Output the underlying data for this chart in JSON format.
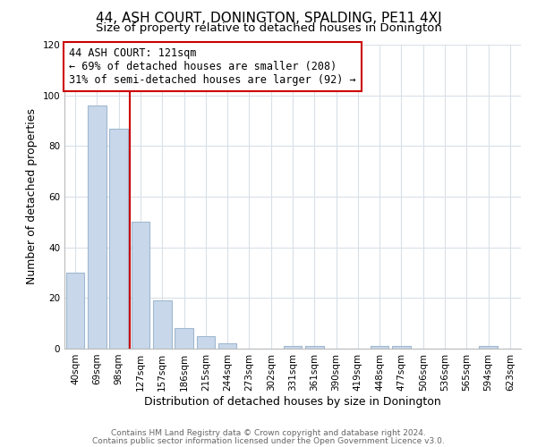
{
  "title": "44, ASH COURT, DONINGTON, SPALDING, PE11 4XJ",
  "subtitle": "Size of property relative to detached houses in Donington",
  "xlabel": "Distribution of detached houses by size in Donington",
  "ylabel": "Number of detached properties",
  "bar_labels": [
    "40sqm",
    "69sqm",
    "98sqm",
    "127sqm",
    "157sqm",
    "186sqm",
    "215sqm",
    "244sqm",
    "273sqm",
    "302sqm",
    "331sqm",
    "361sqm",
    "390sqm",
    "419sqm",
    "448sqm",
    "477sqm",
    "506sqm",
    "536sqm",
    "565sqm",
    "594sqm",
    "623sqm"
  ],
  "bar_values": [
    30,
    96,
    87,
    50,
    19,
    8,
    5,
    2,
    0,
    0,
    1,
    1,
    0,
    0,
    1,
    1,
    0,
    0,
    0,
    1,
    0
  ],
  "bar_color": "#c8d8ea",
  "bar_edge_color": "#a0b8d0",
  "property_line_color": "#cc0000",
  "annotation_title": "44 ASH COURT: 121sqm",
  "annotation_line2": "← 69% of detached houses are smaller (208)",
  "annotation_line3": "31% of semi-detached houses are larger (92) →",
  "annotation_box_color": "#ffffff",
  "annotation_box_edge_color": "#cc0000",
  "ylim": [
    0,
    120
  ],
  "yticks": [
    0,
    20,
    40,
    60,
    80,
    100,
    120
  ],
  "footer_line1": "Contains HM Land Registry data © Crown copyright and database right 2024.",
  "footer_line2": "Contains public sector information licensed under the Open Government Licence v3.0.",
  "background_color": "#ffffff",
  "grid_color": "#d8e0e8",
  "title_fontsize": 11,
  "subtitle_fontsize": 9.5,
  "axis_label_fontsize": 9,
  "tick_fontsize": 7.5,
  "annotation_fontsize": 8.5,
  "footer_fontsize": 6.5
}
